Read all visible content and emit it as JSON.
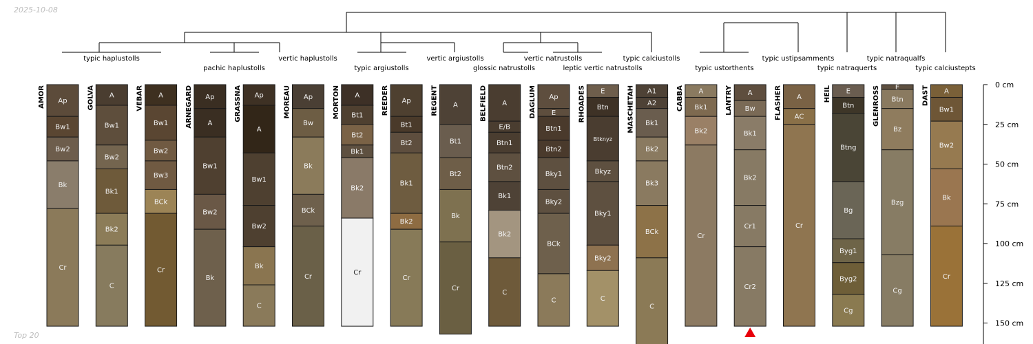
{
  "date_stamp": "2025-10-08",
  "footer_note": "Top 20",
  "depth_axis": {
    "unit": "cm",
    "ticks": [
      {
        "depth": 0,
        "label": "0 cm"
      },
      {
        "depth": 25,
        "label": "25 cm"
      },
      {
        "depth": 50,
        "label": "50 cm"
      },
      {
        "depth": 75,
        "label": "75 cm"
      },
      {
        "depth": 100,
        "label": "100 cm"
      },
      {
        "depth": 125,
        "label": "125 cm"
      },
      {
        "depth": 150,
        "label": "150 cm"
      }
    ]
  },
  "taxa_labels": [
    "typic haplustolls",
    "pachic haplustolls",
    "vertic haplustolls",
    "typic argiustolls",
    "vertic argiustolls",
    "glossic natrustolls",
    "vertic natrustolls",
    "leptic vertic natrustolls",
    "typic calciustolls",
    "typic ustorthents",
    "typic ustipsamments",
    "typic natraquerts",
    "typic natraqualfs",
    "typic calciustepts"
  ],
  "marker": {
    "profile": "LANTRY",
    "color": "#e8000b"
  },
  "profiles": [
    {
      "name": "AMOR",
      "horizons": [
        {
          "name": "Ap",
          "top": 0,
          "bottom": 20,
          "color": "#5c4b3a"
        },
        {
          "name": "Bw1",
          "top": 20,
          "bottom": 33,
          "color": "#5a4632"
        },
        {
          "name": "Bw2",
          "top": 33,
          "bottom": 48,
          "color": "#6d5d4c"
        },
        {
          "name": "Bk",
          "top": 48,
          "bottom": 78,
          "color": "#8a7d6b"
        },
        {
          "name": "Cr",
          "top": 78,
          "bottom": 152,
          "color": "#8b7a5a"
        }
      ]
    },
    {
      "name": "GOLVA",
      "horizons": [
        {
          "name": "A",
          "top": 0,
          "bottom": 13,
          "color": "#4a3d30"
        },
        {
          "name": "Bw1",
          "top": 13,
          "bottom": 38,
          "color": "#5e4e3c"
        },
        {
          "name": "Bw2",
          "top": 38,
          "bottom": 53,
          "color": "#74654f"
        },
        {
          "name": "Bk1",
          "top": 53,
          "bottom": 81,
          "color": "#6e5a3a"
        },
        {
          "name": "Bk2",
          "top": 81,
          "bottom": 101,
          "color": "#8c7c58"
        },
        {
          "name": "C",
          "top": 101,
          "bottom": 152,
          "color": "#877b5e"
        }
      ]
    },
    {
      "name": "VEBAR",
      "horizons": [
        {
          "name": "A",
          "top": 0,
          "bottom": 13,
          "color": "#3e3020"
        },
        {
          "name": "Bw1",
          "top": 13,
          "bottom": 35,
          "color": "#5a4632"
        },
        {
          "name": "Bw2",
          "top": 35,
          "bottom": 48,
          "color": "#705a42"
        },
        {
          "name": "Bw3",
          "top": 48,
          "bottom": 66,
          "color": "#705a42"
        },
        {
          "name": "BCk",
          "top": 66,
          "bottom": 81,
          "color": "#9c8456"
        },
        {
          "name": "Cr",
          "top": 81,
          "bottom": 152,
          "color": "#725a32"
        }
      ]
    },
    {
      "name": "ARNEGARD",
      "horizons": [
        {
          "name": "Ap",
          "top": 0,
          "bottom": 15,
          "color": "#3a2e22"
        },
        {
          "name": "A",
          "top": 15,
          "bottom": 33,
          "color": "#3a2e22"
        },
        {
          "name": "Bw1",
          "top": 33,
          "bottom": 69,
          "color": "#4f4030"
        },
        {
          "name": "Bw2",
          "top": 69,
          "bottom": 91,
          "color": "#6a5846"
        },
        {
          "name": "Bk",
          "top": 91,
          "bottom": 152,
          "color": "#6e604c"
        }
      ]
    },
    {
      "name": "GRASSNA",
      "horizons": [
        {
          "name": "Ap",
          "top": 0,
          "bottom": 13,
          "color": "#3e3124"
        },
        {
          "name": "A",
          "top": 13,
          "bottom": 43,
          "color": "#322618"
        },
        {
          "name": "Bw1",
          "top": 43,
          "bottom": 76,
          "color": "#4e4030"
        },
        {
          "name": "Bw2",
          "top": 76,
          "bottom": 102,
          "color": "#4e4030"
        },
        {
          "name": "Bk",
          "top": 102,
          "bottom": 126,
          "color": "#8a7550"
        },
        {
          "name": "C",
          "top": 126,
          "bottom": 152,
          "color": "#8a7a5a"
        }
      ]
    },
    {
      "name": "MOREAU",
      "horizons": [
        {
          "name": "Ap",
          "top": 0,
          "bottom": 15,
          "color": "#4a3f34"
        },
        {
          "name": "Bw",
          "top": 15,
          "bottom": 33,
          "color": "#6d5d44"
        },
        {
          "name": "Bk",
          "top": 33,
          "bottom": 69,
          "color": "#8b7b5b"
        },
        {
          "name": "BCk",
          "top": 69,
          "bottom": 89,
          "color": "#6e604c"
        },
        {
          "name": "Cr",
          "top": 89,
          "bottom": 152,
          "color": "#6a6048"
        }
      ]
    },
    {
      "name": "MORTON",
      "horizons": [
        {
          "name": "A",
          "top": 0,
          "bottom": 13,
          "color": "#3d3026"
        },
        {
          "name": "Bt1",
          "top": 13,
          "bottom": 25,
          "color": "#4f4030"
        },
        {
          "name": "Bt2",
          "top": 25,
          "bottom": 38,
          "color": "#7a6246"
        },
        {
          "name": "Bk1",
          "top": 38,
          "bottom": 46,
          "color": "#5e5040"
        },
        {
          "name": "Bk2",
          "top": 46,
          "bottom": 84,
          "color": "#8a7a68"
        },
        {
          "name": "Cr",
          "top": 84,
          "bottom": 152,
          "color": "#f1f1f1"
        }
      ]
    },
    {
      "name": "REEDER",
      "horizons": [
        {
          "name": "Ap",
          "top": 0,
          "bottom": 20,
          "color": "#4e4030"
        },
        {
          "name": "Bt1",
          "top": 20,
          "bottom": 30,
          "color": "#4a3a2a"
        },
        {
          "name": "Bt2",
          "top": 30,
          "bottom": 43,
          "color": "#5e4e3e"
        },
        {
          "name": "Bk1",
          "top": 43,
          "bottom": 81,
          "color": "#6e5c40"
        },
        {
          "name": "Bk2",
          "top": 81,
          "bottom": 91,
          "color": "#8e6c42"
        },
        {
          "name": "Cr",
          "top": 91,
          "bottom": 152,
          "color": "#877a58"
        }
      ]
    },
    {
      "name": "REGENT",
      "horizons": [
        {
          "name": "A",
          "top": 0,
          "bottom": 25,
          "color": "#4e4236"
        },
        {
          "name": "Bt1",
          "top": 25,
          "bottom": 46,
          "color": "#6a5d4e"
        },
        {
          "name": "Bt2",
          "top": 46,
          "bottom": 66,
          "color": "#6e5e48"
        },
        {
          "name": "Bk",
          "top": 66,
          "bottom": 99,
          "color": "#7e7150"
        },
        {
          "name": "Cr",
          "top": 99,
          "bottom": 157,
          "color": "#6a5f42"
        }
      ]
    },
    {
      "name": "BELFIELD",
      "horizons": [
        {
          "name": "A",
          "top": 0,
          "bottom": 23,
          "color": "#4a3d30"
        },
        {
          "name": "E/B",
          "top": 23,
          "bottom": 30,
          "color": "#4a3d30"
        },
        {
          "name": "Btn1",
          "top": 30,
          "bottom": 43,
          "color": "#4a3d30"
        },
        {
          "name": "Btn2",
          "top": 43,
          "bottom": 61,
          "color": "#5e5040"
        },
        {
          "name": "Bk1",
          "top": 61,
          "bottom": 79,
          "color": "#4e4236"
        },
        {
          "name": "Bk2",
          "top": 79,
          "bottom": 109,
          "color": "#a39580"
        },
        {
          "name": "C",
          "top": 109,
          "bottom": 152,
          "color": "#6e5a3a"
        }
      ]
    },
    {
      "name": "DAGLUM",
      "horizons": [
        {
          "name": "Ap",
          "top": 0,
          "bottom": 15,
          "color": "#5e4e3e"
        },
        {
          "name": "E",
          "top": 15,
          "bottom": 20,
          "color": "#5e4e3e"
        },
        {
          "name": "Btn1",
          "top": 20,
          "bottom": 35,
          "color": "#4a3a2c"
        },
        {
          "name": "Btn2",
          "top": 35,
          "bottom": 46,
          "color": "#4a3a2c"
        },
        {
          "name": "Bky1",
          "top": 46,
          "bottom": 66,
          "color": "#5e5040"
        },
        {
          "name": "Bky2",
          "top": 66,
          "bottom": 81,
          "color": "#5e5040"
        },
        {
          "name": "BCk",
          "top": 81,
          "bottom": 119,
          "color": "#6e604c"
        },
        {
          "name": "C",
          "top": 119,
          "bottom": 152,
          "color": "#8b7a5a"
        }
      ]
    },
    {
      "name": "RHOADES",
      "horizons": [
        {
          "name": "E",
          "top": 0,
          "bottom": 8,
          "color": "#6e5e4c"
        },
        {
          "name": "Btn",
          "top": 8,
          "bottom": 20,
          "color": "#3e3226"
        },
        {
          "name": "Btknyz",
          "top": 20,
          "bottom": 48,
          "color": "#4a3d30"
        },
        {
          "name": "Bkyz",
          "top": 48,
          "bottom": 61,
          "color": "#5e5040"
        },
        {
          "name": "Bky1",
          "top": 61,
          "bottom": 101,
          "color": "#5e5040"
        },
        {
          "name": "Bky2",
          "top": 101,
          "bottom": 117,
          "color": "#8e7250"
        },
        {
          "name": "C",
          "top": 117,
          "bottom": 152,
          "color": "#a39168"
        }
      ]
    },
    {
      "name": "MASCHETAH",
      "horizons": [
        {
          "name": "A1",
          "top": 0,
          "bottom": 8,
          "color": "#4e4236"
        },
        {
          "name": "A2",
          "top": 8,
          "bottom": 15,
          "color": "#4e4236"
        },
        {
          "name": "Bk1",
          "top": 15,
          "bottom": 33,
          "color": "#6a5d4e"
        },
        {
          "name": "Bk2",
          "top": 33,
          "bottom": 48,
          "color": "#8a7a60"
        },
        {
          "name": "Bk3",
          "top": 48,
          "bottom": 76,
          "color": "#8a7a60"
        },
        {
          "name": "BCk",
          "top": 76,
          "bottom": 109,
          "color": "#8d7248"
        },
        {
          "name": "C",
          "top": 109,
          "bottom": 170,
          "color": "#8b7a56"
        }
      ]
    },
    {
      "name": "CABBA",
      "horizons": [
        {
          "name": "A",
          "top": 0,
          "bottom": 8,
          "color": "#8a7a60"
        },
        {
          "name": "Bk1",
          "top": 8,
          "bottom": 20,
          "color": "#7e6a50"
        },
        {
          "name": "Bk2",
          "top": 20,
          "bottom": 38,
          "color": "#9a8066"
        },
        {
          "name": "Cr",
          "top": 38,
          "bottom": 152,
          "color": "#8c7a62"
        }
      ]
    },
    {
      "name": "LANTRY",
      "horizons": [
        {
          "name": "A",
          "top": 0,
          "bottom": 10,
          "color": "#5e4e3e"
        },
        {
          "name": "Bw",
          "top": 10,
          "bottom": 20,
          "color": "#7a6a56"
        },
        {
          "name": "Bk1",
          "top": 20,
          "bottom": 41,
          "color": "#8a7c68"
        },
        {
          "name": "Bk2",
          "top": 41,
          "bottom": 76,
          "color": "#877a64"
        },
        {
          "name": "Cr1",
          "top": 76,
          "bottom": 102,
          "color": "#877a64"
        },
        {
          "name": "Cr2",
          "top": 102,
          "bottom": 152,
          "color": "#877a64"
        }
      ]
    },
    {
      "name": "FLASHER",
      "horizons": [
        {
          "name": "A",
          "top": 0,
          "bottom": 15,
          "color": "#7a6245"
        },
        {
          "name": "AC",
          "top": 15,
          "bottom": 25,
          "color": "#8a7048"
        },
        {
          "name": "Cr",
          "top": 25,
          "bottom": 152,
          "color": "#8f7550"
        }
      ]
    },
    {
      "name": "HEIL",
      "horizons": [
        {
          "name": "E",
          "top": 0,
          "bottom": 8,
          "color": "#6a5d50"
        },
        {
          "name": "Btn",
          "top": 8,
          "bottom": 18,
          "color": "#3e3628"
        },
        {
          "name": "Btng",
          "top": 18,
          "bottom": 61,
          "color": "#4a4536"
        },
        {
          "name": "Bg",
          "top": 61,
          "bottom": 97,
          "color": "#6a6556"
        },
        {
          "name": "Byg1",
          "top": 97,
          "bottom": 112,
          "color": "#6e6448"
        },
        {
          "name": "Byg2",
          "top": 112,
          "bottom": 132,
          "color": "#6e5e38"
        },
        {
          "name": "Cg",
          "top": 132,
          "bottom": 152,
          "color": "#8a7a50"
        }
      ]
    },
    {
      "name": "GLENROSS",
      "horizons": [
        {
          "name": "E",
          "top": 0,
          "bottom": 3,
          "color": "#5e5040"
        },
        {
          "name": "Btn",
          "top": 3,
          "bottom": 15,
          "color": "#8a7a60"
        },
        {
          "name": "Bz",
          "top": 15,
          "bottom": 41,
          "color": "#8f7c5e"
        },
        {
          "name": "Bzg",
          "top": 41,
          "bottom": 107,
          "color": "#877c64"
        },
        {
          "name": "Cg",
          "top": 107,
          "bottom": 152,
          "color": "#877c64"
        }
      ]
    },
    {
      "name": "DAST",
      "horizons": [
        {
          "name": "A",
          "top": 0,
          "bottom": 8,
          "color": "#7a6038"
        },
        {
          "name": "Bw1",
          "top": 8,
          "bottom": 23,
          "color": "#6e5636"
        },
        {
          "name": "Bw2",
          "top": 23,
          "bottom": 53,
          "color": "#967a50"
        },
        {
          "name": "Bk",
          "top": 53,
          "bottom": 89,
          "color": "#9a7650"
        },
        {
          "name": "Cr",
          "top": 89,
          "bottom": 152,
          "color": "#9a7238"
        }
      ]
    }
  ]
}
